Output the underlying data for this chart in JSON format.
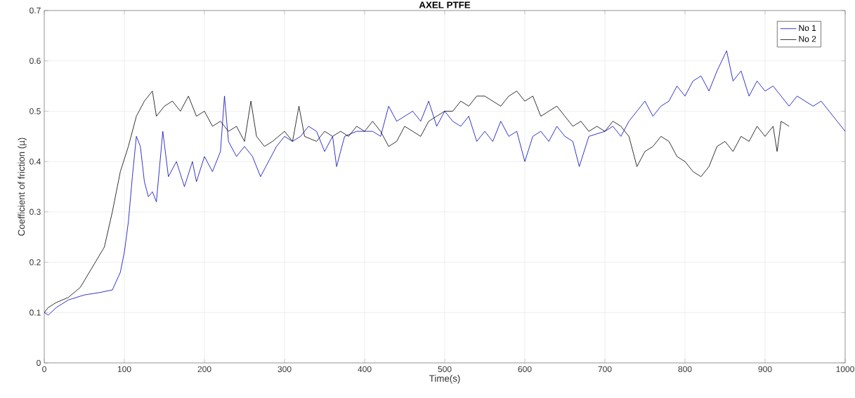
{
  "chart_data": {
    "type": "line",
    "title": "AXEL PTFE",
    "xlabel": "Time(s)",
    "ylabel": "Coefficient of friction (µ)",
    "xlim": [
      0,
      1000
    ],
    "ylim": [
      0,
      0.7
    ],
    "xticks": [
      0,
      100,
      200,
      300,
      400,
      500,
      600,
      700,
      800,
      900,
      1000
    ],
    "yticks": [
      0,
      0.1,
      0.2,
      0.3,
      0.4,
      0.5,
      0.6,
      0.7
    ],
    "grid": true,
    "legend": "top right",
    "marker": "none",
    "line_style": "solid",
    "series": [
      {
        "name": "No 1",
        "color": "#0000c0",
        "x": [
          0,
          5,
          15,
          30,
          50,
          70,
          85,
          95,
          100,
          105,
          110,
          115,
          120,
          125,
          130,
          135,
          140,
          148,
          155,
          165,
          175,
          185,
          190,
          200,
          210,
          220,
          225,
          230,
          240,
          250,
          260,
          270,
          280,
          290,
          300,
          310,
          320,
          330,
          340,
          350,
          360,
          365,
          375,
          390,
          400,
          410,
          420,
          430,
          440,
          450,
          460,
          470,
          480,
          490,
          500,
          510,
          520,
          530,
          540,
          550,
          560,
          570,
          580,
          590,
          600,
          610,
          620,
          630,
          640,
          650,
          660,
          668,
          680,
          700,
          710,
          720,
          730,
          740,
          750,
          760,
          770,
          780,
          790,
          800,
          810,
          820,
          830,
          840,
          852,
          860,
          870,
          880,
          890,
          900,
          910,
          920,
          930,
          940,
          950,
          960,
          970,
          980,
          990,
          1000
        ],
        "values": [
          0.1,
          0.095,
          0.11,
          0.125,
          0.135,
          0.14,
          0.145,
          0.18,
          0.22,
          0.28,
          0.37,
          0.45,
          0.43,
          0.36,
          0.33,
          0.34,
          0.32,
          0.46,
          0.37,
          0.4,
          0.35,
          0.4,
          0.36,
          0.41,
          0.38,
          0.42,
          0.53,
          0.44,
          0.41,
          0.43,
          0.41,
          0.37,
          0.4,
          0.43,
          0.45,
          0.44,
          0.45,
          0.47,
          0.46,
          0.42,
          0.45,
          0.39,
          0.45,
          0.46,
          0.46,
          0.46,
          0.45,
          0.51,
          0.48,
          0.49,
          0.5,
          0.48,
          0.52,
          0.47,
          0.5,
          0.48,
          0.47,
          0.49,
          0.44,
          0.46,
          0.44,
          0.48,
          0.45,
          0.46,
          0.4,
          0.45,
          0.46,
          0.44,
          0.47,
          0.45,
          0.44,
          0.39,
          0.45,
          0.46,
          0.47,
          0.45,
          0.48,
          0.5,
          0.52,
          0.49,
          0.51,
          0.52,
          0.55,
          0.53,
          0.56,
          0.57,
          0.54,
          0.58,
          0.62,
          0.56,
          0.58,
          0.53,
          0.56,
          0.54,
          0.55,
          0.53,
          0.51,
          0.53,
          0.52,
          0.51,
          0.52,
          0.5,
          0.48,
          0.46
        ]
      },
      {
        "name": "No 2",
        "color": "#000000",
        "x": [
          0,
          5,
          15,
          30,
          45,
          60,
          75,
          85,
          95,
          105,
          115,
          125,
          135,
          140,
          150,
          160,
          170,
          180,
          190,
          200,
          210,
          220,
          230,
          240,
          250,
          258,
          265,
          275,
          285,
          300,
          310,
          318,
          325,
          340,
          350,
          360,
          370,
          380,
          390,
          400,
          410,
          420,
          430,
          440,
          450,
          460,
          470,
          480,
          490,
          500,
          510,
          520,
          530,
          540,
          550,
          560,
          570,
          580,
          590,
          600,
          610,
          620,
          630,
          640,
          650,
          660,
          670,
          680,
          690,
          700,
          710,
          720,
          730,
          740,
          750,
          760,
          770,
          780,
          790,
          800,
          810,
          820,
          830,
          840,
          850,
          860,
          870,
          880,
          890,
          900,
          910,
          915,
          920,
          930
        ],
        "values": [
          0.1,
          0.11,
          0.12,
          0.13,
          0.15,
          0.19,
          0.23,
          0.3,
          0.38,
          0.43,
          0.49,
          0.52,
          0.54,
          0.49,
          0.51,
          0.52,
          0.5,
          0.53,
          0.49,
          0.5,
          0.47,
          0.48,
          0.46,
          0.47,
          0.44,
          0.52,
          0.45,
          0.43,
          0.44,
          0.46,
          0.44,
          0.51,
          0.45,
          0.44,
          0.46,
          0.45,
          0.46,
          0.45,
          0.47,
          0.46,
          0.48,
          0.46,
          0.43,
          0.44,
          0.47,
          0.46,
          0.45,
          0.48,
          0.49,
          0.5,
          0.5,
          0.52,
          0.51,
          0.53,
          0.53,
          0.52,
          0.51,
          0.53,
          0.54,
          0.52,
          0.53,
          0.49,
          0.5,
          0.51,
          0.49,
          0.47,
          0.48,
          0.46,
          0.47,
          0.46,
          0.48,
          0.47,
          0.45,
          0.39,
          0.42,
          0.43,
          0.45,
          0.44,
          0.41,
          0.4,
          0.38,
          0.37,
          0.39,
          0.43,
          0.44,
          0.42,
          0.45,
          0.44,
          0.47,
          0.45,
          0.47,
          0.42,
          0.48,
          0.47
        ]
      }
    ]
  }
}
